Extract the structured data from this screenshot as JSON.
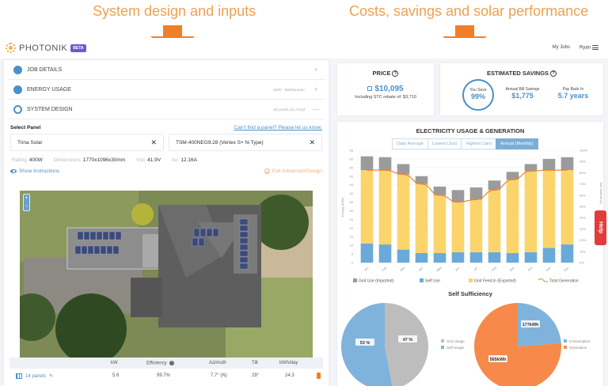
{
  "captions": {
    "left": "System design and inputs",
    "right": "Costs, savings and solar performance"
  },
  "header": {
    "brand": "PHOTONIK",
    "badge": "BETA",
    "nav": [
      "My Jobs",
      "Ryan"
    ]
  },
  "accordion": [
    {
      "title": "JOB DETAILS",
      "meta": "",
      "toggle": "+"
    },
    {
      "title": "ENERGY USAGE",
      "meta": "$400 - $500/quarter",
      "toggle": "+"
    },
    {
      "title": "SYSTEM DESIGN",
      "meta": "28 panels (11.2 kW)",
      "toggle": "—"
    }
  ],
  "panel_select": {
    "label": "Select Panel",
    "link": "Can't find a panel? Please let us know.",
    "brand": "Trina Solar",
    "model": "TSM-400NEG9.28 (Vertex S+ N-Type)",
    "clear": "✕",
    "specs": [
      {
        "key": "Rating",
        "value": "400W"
      },
      {
        "key": "Dimensions",
        "value": "1770x1096x30mm"
      },
      {
        "key": "Voc",
        "value": "41.9V"
      },
      {
        "key": "Isc",
        "value": "12.16A"
      }
    ],
    "show_instructions": "Show Instructions",
    "exit_advanced": "Exit Advanced Design"
  },
  "map": {
    "zoom_in": "+",
    "zoom_out": "−"
  },
  "array_table": {
    "headers": [
      "kW",
      "Efficiency",
      "Azimuth",
      "Tilt",
      "kWh/day"
    ],
    "rows": [
      {
        "name": "14 panels",
        "kw": "5.6",
        "efficiency": "99.7%",
        "azimuth": "7.7° (N)",
        "tilt": "29°",
        "kwh_day": "24.3"
      }
    ]
  },
  "price": {
    "title": "PRICE",
    "amount": "$10,095",
    "rebate_label": "Including STC rebate of:",
    "rebate_value": "$3,710"
  },
  "savings": {
    "title": "ESTIMATED SAVINGS",
    "you_save_label": "You Save",
    "you_save_value": "99%",
    "annual_label": "Annual Bill Savings",
    "annual_value": "$1,775",
    "payback_label": "Pay Back In",
    "payback_value": "5.7 years"
  },
  "usage_chart": {
    "title": "ELECTRICITY USAGE & GENERATION",
    "tabs": [
      "Daily Average",
      "Lowest (Jun)",
      "Highest (Jan)",
      "Annual (Monthly)"
    ],
    "active_tab": 3
  },
  "self_sufficiency": {
    "title": "Self Sufficiency",
    "pie1_legend": [
      "Grid Usage",
      "Self Usage"
    ],
    "pie2_legend": [
      "Consumption",
      "Generation"
    ]
  },
  "help": {
    "label": "Help"
  },
  "colors": {
    "accent_orange": "#f07f2a",
    "brand_blue": "#4a90c8",
    "grid_use": "#9b9b9b",
    "self_use": "#6aaad8",
    "feed_in": "#fbd46b",
    "generation_line": "#e8823a",
    "help_red": "#e23b3b"
  },
  "chart_data": [
    {
      "type": "bar",
      "title": "ELECTRICITY USAGE & GENERATION",
      "stacked": true,
      "categories": [
        "Jan",
        "Feb",
        "Mar",
        "Apr",
        "May",
        "Jun",
        "Jul",
        "Aug",
        "Sep",
        "Oct",
        "Nov",
        "Dec"
      ],
      "series": [
        {
          "name": "Self Use",
          "values": [
            11,
            10.5,
            7.5,
            5.5,
            5.5,
            6,
            6,
            6,
            5.5,
            6,
            8.5,
            10.5
          ]
        },
        {
          "name": "Grid Feed-In (Exported)",
          "values": [
            42.5,
            43,
            43.5,
            40,
            33.5,
            29,
            30.5,
            36,
            42.5,
            47,
            45,
            43
          ]
        },
        {
          "name": "Grid Use (Imported)",
          "values": [
            8,
            7.5,
            6,
            4.5,
            5,
            7,
            7,
            5.5,
            4.5,
            4,
            6.5,
            7.5
          ]
        },
        {
          "name": "Total Generation",
          "type": "line",
          "values": [
            53.5,
            53.5,
            51,
            45.5,
            39,
            35,
            36.5,
            42,
            48,
            53,
            53.5,
            53.5
          ]
        }
      ],
      "xlabel": "",
      "ylabel": "Energy (kWh)",
      "y2label": "Self Sufficiency",
      "ylim": [
        0,
        65
      ],
      "yticks": [
        0,
        5,
        10,
        15,
        20,
        25,
        30,
        35,
        40,
        45,
        50,
        55,
        60,
        65
      ],
      "y2lim": [
        0,
        100
      ],
      "y2ticks": [
        "0%",
        "10%",
        "20%",
        "30%",
        "40%",
        "50%",
        "60%",
        "70%",
        "80%",
        "90%",
        "100%"
      ],
      "legend": [
        "Grid Use (Imported)",
        "Self Use",
        "Grid Feed-In (Exported)",
        "Total Generation"
      ],
      "legend_position": "bottom",
      "grid": true
    },
    {
      "type": "pie",
      "title": "Self Sufficiency",
      "categories": [
        "Grid Usage",
        "Self Usage"
      ],
      "values": [
        47,
        53
      ],
      "labels": [
        "47 %",
        "53 %"
      ]
    },
    {
      "type": "pie",
      "title": "",
      "categories": [
        "Consumption",
        "Generation"
      ],
      "values": [
        177,
        565
      ],
      "labels": [
        "177kWh",
        "565kWh"
      ]
    }
  ]
}
